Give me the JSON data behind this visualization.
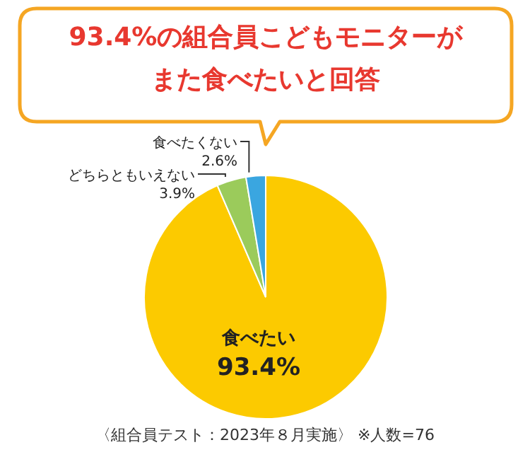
{
  "chart_data": {
    "type": "pie",
    "title": "93.4%の組合員こどもモニターがまた食べたいと回答",
    "categories": [
      "食べたい",
      "どちらともいえない",
      "食べたくない"
    ],
    "values": [
      93.4,
      3.9,
      2.6
    ],
    "colors": [
      "#fcca00",
      "#9bcb5b",
      "#3aa6e0"
    ],
    "value_labels": [
      "93.4%",
      "3.9%",
      "2.6%"
    ],
    "annotations": [
      "〈組合員テスト：2023年８月実施〉 ※人数=76"
    ],
    "legend": false
  }
}
